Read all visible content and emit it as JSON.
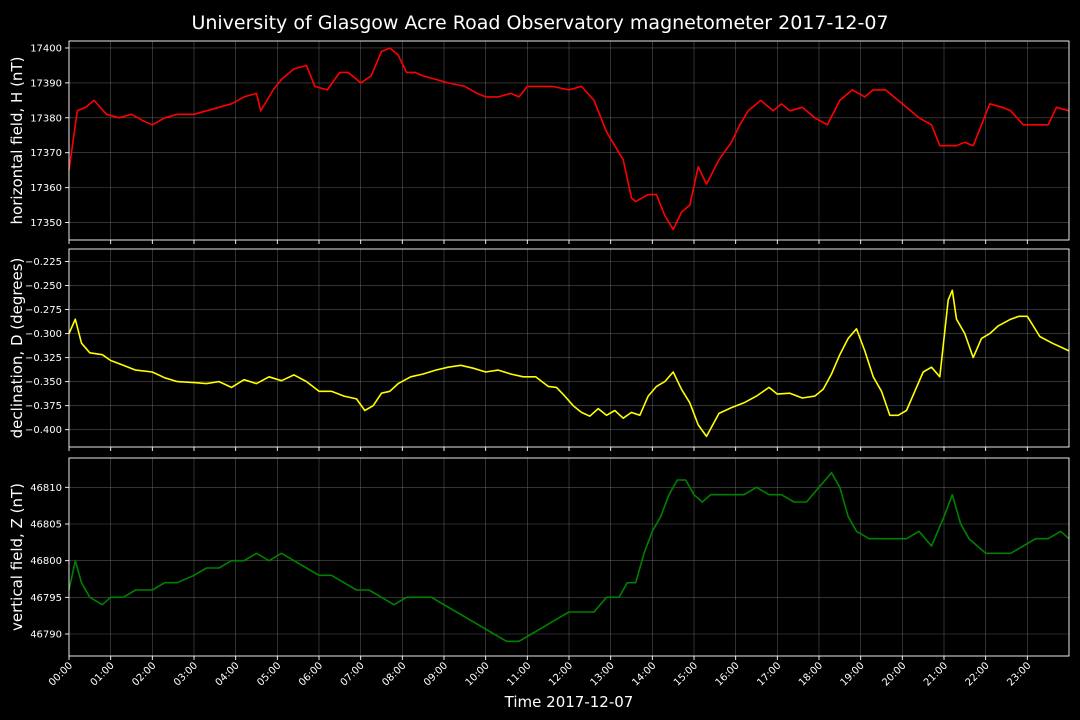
{
  "chart_data": {
    "type": "line",
    "title": "University of Glasgow Acre Road Observatory magnetometer 2017-12-07",
    "xlabel": "Time 2017-12-07",
    "x_ticks": [
      "00:00",
      "01:00",
      "02:00",
      "03:00",
      "04:00",
      "05:00",
      "06:00",
      "07:00",
      "08:00",
      "09:00",
      "10:00",
      "11:00",
      "12:00",
      "13:00",
      "14:00",
      "15:00",
      "16:00",
      "17:00",
      "18:00",
      "19:00",
      "20:00",
      "21:00",
      "22:00",
      "23:00"
    ],
    "xlim_hours": [
      0,
      24
    ],
    "grid": true,
    "panels": [
      {
        "name": "horizontal-field",
        "ylabel": "horizontal field, H (nT)",
        "color": "#ff0000",
        "ylim": [
          17345,
          17402
        ],
        "yticks": [
          17350,
          17360,
          17370,
          17380,
          17390,
          17400
        ],
        "ytick_labels": [
          "17350",
          "17360",
          "17370",
          "17380",
          "17390",
          "17400"
        ],
        "x": [
          0,
          0.2,
          0.4,
          0.6,
          0.9,
          1.2,
          1.5,
          1.8,
          2.0,
          2.3,
          2.6,
          3.0,
          3.3,
          3.6,
          3.9,
          4.2,
          4.5,
          4.6,
          4.9,
          5.1,
          5.4,
          5.7,
          5.9,
          6.2,
          6.5,
          6.7,
          7.0,
          7.25,
          7.5,
          7.7,
          7.9,
          8.1,
          8.3,
          8.5,
          8.8,
          9.1,
          9.5,
          9.8,
          10.0,
          10.3,
          10.6,
          10.8,
          11.0,
          11.3,
          11.6,
          12.0,
          12.3,
          12.6,
          12.9,
          13.1,
          13.3,
          13.5,
          13.6,
          13.9,
          14.1,
          14.3,
          14.5,
          14.7,
          14.9,
          15.1,
          15.3,
          15.6,
          15.9,
          16.1,
          16.3,
          16.6,
          16.9,
          17.1,
          17.3,
          17.6,
          17.9,
          18.2,
          18.5,
          18.8,
          19.1,
          19.3,
          19.6,
          19.9,
          20.2,
          20.4,
          20.7,
          20.9,
          21.1,
          21.3,
          21.5,
          21.7,
          21.9,
          22.1,
          22.4,
          22.6,
          22.9,
          23.2,
          23.5,
          23.7,
          24.0
        ],
        "y": [
          17365,
          17382,
          17383,
          17385,
          17381,
          17380,
          17381,
          17379,
          17378,
          17380,
          17381,
          17381,
          17382,
          17383,
          17384,
          17386,
          17387,
          17382,
          17388,
          17391,
          17394,
          17395,
          17389,
          17388,
          17393,
          17393,
          17390,
          17392,
          17399,
          17400,
          17398,
          17393,
          17393,
          17392,
          17391,
          17390,
          17389,
          17387,
          17386,
          17386,
          17387,
          17386,
          17389,
          17389,
          17389,
          17388,
          17389,
          17385,
          17376,
          17372,
          17368,
          17357,
          17356,
          17358,
          17358,
          17352,
          17348,
          17353,
          17355,
          17366,
          17361,
          17368,
          17373,
          17378,
          17382,
          17385,
          17382,
          17384,
          17382,
          17383,
          17380,
          17378,
          17385,
          17388,
          17386,
          17388,
          17388,
          17385,
          17382,
          17380,
          17378,
          17372,
          17372,
          17372,
          17373,
          17372,
          17378,
          17384,
          17383,
          17382,
          17378,
          17378,
          17378,
          17383,
          17382
        ]
      },
      {
        "name": "declination",
        "ylabel": "declination, D (degrees)",
        "color": "#ffff00",
        "ylim": [
          -0.418,
          -0.212
        ],
        "yticks": [
          -0.4,
          -0.375,
          -0.35,
          -0.325,
          -0.3,
          -0.275,
          -0.25,
          -0.225
        ],
        "ytick_labels": [
          "−0.400",
          "−0.375",
          "−0.350",
          "−0.325",
          "−0.300",
          "−0.275",
          "−0.250",
          "−0.225"
        ],
        "x": [
          0,
          0.15,
          0.3,
          0.5,
          0.8,
          1.0,
          1.3,
          1.6,
          2.0,
          2.3,
          2.6,
          3.0,
          3.3,
          3.6,
          3.9,
          4.2,
          4.5,
          4.8,
          5.1,
          5.4,
          5.7,
          6.0,
          6.3,
          6.6,
          6.9,
          7.1,
          7.3,
          7.5,
          7.7,
          7.9,
          8.2,
          8.5,
          8.8,
          9.1,
          9.4,
          9.7,
          10.0,
          10.3,
          10.6,
          10.9,
          11.2,
          11.5,
          11.7,
          11.9,
          12.1,
          12.3,
          12.5,
          12.7,
          12.9,
          13.1,
          13.3,
          13.5,
          13.7,
          13.9,
          14.1,
          14.3,
          14.5,
          14.7,
          14.9,
          15.1,
          15.3,
          15.6,
          15.9,
          16.2,
          16.5,
          16.8,
          17.0,
          17.3,
          17.6,
          17.9,
          18.1,
          18.3,
          18.5,
          18.7,
          18.9,
          19.1,
          19.3,
          19.5,
          19.7,
          19.9,
          20.1,
          20.3,
          20.5,
          20.7,
          20.9,
          21.0,
          21.1,
          21.2,
          21.3,
          21.5,
          21.7,
          21.9,
          22.1,
          22.3,
          22.6,
          22.8,
          23.0,
          23.3,
          23.6,
          23.8,
          24.0
        ],
        "y": [
          -0.3,
          -0.285,
          -0.31,
          -0.32,
          -0.322,
          -0.328,
          -0.333,
          -0.338,
          -0.34,
          -0.346,
          -0.35,
          -0.351,
          -0.352,
          -0.35,
          -0.356,
          -0.348,
          -0.352,
          -0.345,
          -0.349,
          -0.343,
          -0.35,
          -0.36,
          -0.36,
          -0.365,
          -0.368,
          -0.38,
          -0.375,
          -0.362,
          -0.36,
          -0.352,
          -0.345,
          -0.342,
          -0.338,
          -0.335,
          -0.333,
          -0.336,
          -0.34,
          -0.338,
          -0.342,
          -0.345,
          -0.345,
          -0.355,
          -0.356,
          -0.365,
          -0.375,
          -0.382,
          -0.386,
          -0.378,
          -0.385,
          -0.38,
          -0.388,
          -0.382,
          -0.385,
          -0.365,
          -0.355,
          -0.35,
          -0.34,
          -0.358,
          -0.372,
          -0.395,
          -0.407,
          -0.383,
          -0.377,
          -0.372,
          -0.365,
          -0.356,
          -0.363,
          -0.362,
          -0.367,
          -0.365,
          -0.358,
          -0.342,
          -0.322,
          -0.305,
          -0.295,
          -0.318,
          -0.345,
          -0.36,
          -0.385,
          -0.385,
          -0.38,
          -0.36,
          -0.34,
          -0.335,
          -0.345,
          -0.305,
          -0.265,
          -0.255,
          -0.285,
          -0.3,
          -0.325,
          -0.305,
          -0.3,
          -0.292,
          -0.285,
          -0.282,
          -0.282,
          -0.303,
          -0.31,
          -0.314,
          -0.318
        ]
      },
      {
        "name": "vertical-field",
        "ylabel": "vertical field, Z (nT)",
        "color": "#008000",
        "ylim": [
          46787,
          46814
        ],
        "yticks": [
          46790,
          46795,
          46800,
          46805,
          46810
        ],
        "ytick_labels": [
          "46790",
          "46795",
          "46800",
          "46805",
          "46810"
        ],
        "x": [
          0,
          0.15,
          0.3,
          0.5,
          0.8,
          1.0,
          1.3,
          1.6,
          2.0,
          2.3,
          2.6,
          3.0,
          3.3,
          3.6,
          3.9,
          4.2,
          4.5,
          4.8,
          5.1,
          5.4,
          5.7,
          6.0,
          6.3,
          6.6,
          6.9,
          7.2,
          7.5,
          7.8,
          8.1,
          8.4,
          8.7,
          9.0,
          9.3,
          9.6,
          9.9,
          10.2,
          10.5,
          10.8,
          11.1,
          11.4,
          11.7,
          12.0,
          12.3,
          12.6,
          12.9,
          13.2,
          13.4,
          13.6,
          13.8,
          14.0,
          14.2,
          14.4,
          14.6,
          14.8,
          15.0,
          15.2,
          15.4,
          15.6,
          15.9,
          16.2,
          16.5,
          16.8,
          17.1,
          17.4,
          17.7,
          18.0,
          18.3,
          18.5,
          18.7,
          18.9,
          19.2,
          19.5,
          19.8,
          20.1,
          20.4,
          20.7,
          21.0,
          21.2,
          21.4,
          21.6,
          21.8,
          22.0,
          22.3,
          22.6,
          22.9,
          23.2,
          23.5,
          23.8,
          24.0
        ],
        "y": [
          46796,
          46800,
          46797,
          46795,
          46794,
          46795,
          46795,
          46796,
          46796,
          46797,
          46797,
          46798,
          46799,
          46799,
          46800,
          46800,
          46801,
          46800,
          46801,
          46800,
          46799,
          46798,
          46798,
          46797,
          46796,
          46796,
          46795,
          46794,
          46795,
          46795,
          46795,
          46794,
          46793,
          46792,
          46791,
          46790,
          46789,
          46789,
          46790,
          46791,
          46792,
          46793,
          46793,
          46793,
          46795,
          46795,
          46797,
          46797,
          46801,
          46804,
          46806,
          46809,
          46811,
          46811,
          46809,
          46808,
          46809,
          46809,
          46809,
          46809,
          46810,
          46809,
          46809,
          46808,
          46808,
          46810,
          46812,
          46810,
          46806,
          46804,
          46803,
          46803,
          46803,
          46803,
          46804,
          46802,
          46806,
          46809,
          46805,
          46803,
          46802,
          46801,
          46801,
          46801,
          46802,
          46803,
          46803,
          46804,
          46803
        ]
      }
    ]
  }
}
